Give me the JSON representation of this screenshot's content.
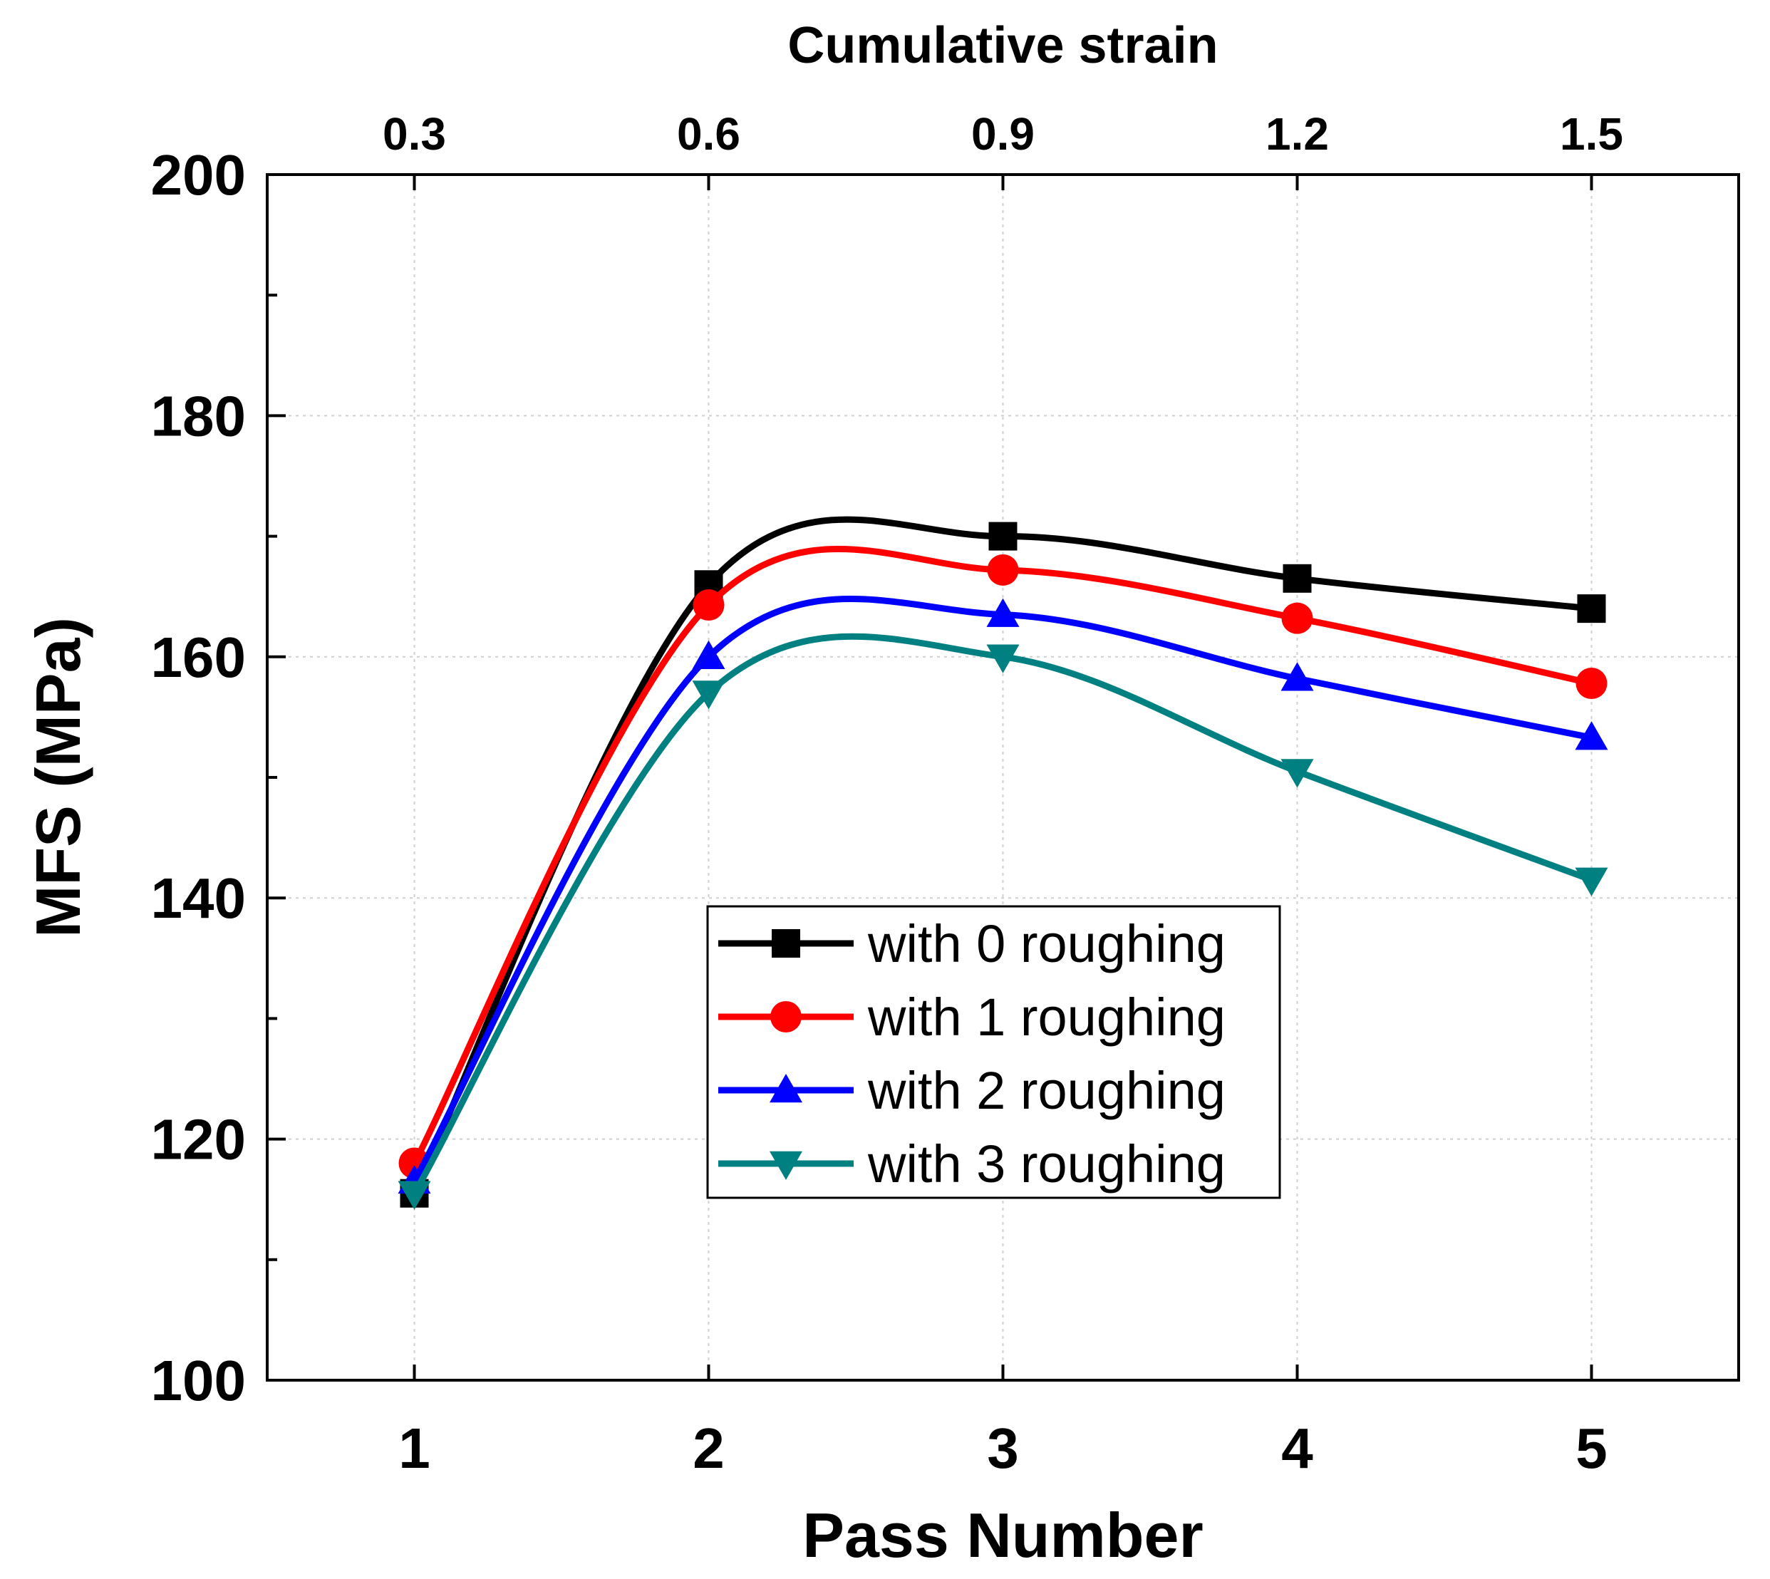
{
  "chart_data": {
    "type": "line",
    "title": "",
    "xlabel": "Pass Number",
    "ylabel": "MFS (MPa)",
    "top_xlabel": "Cumulative strain",
    "x": [
      1,
      2,
      3,
      4,
      5
    ],
    "x_tick_labels": [
      "1",
      "2",
      "3",
      "4",
      "5"
    ],
    "top_tick_labels": [
      "0.3",
      "0.6",
      "0.9",
      "1.2",
      "1.5"
    ],
    "xlim": [
      0.5,
      5.5
    ],
    "ylim": [
      100,
      200
    ],
    "y_major_ticks": [
      100,
      120,
      140,
      160,
      180,
      200
    ],
    "y_tick_labels": [
      "100",
      "120",
      "140",
      "160",
      "180",
      "200"
    ],
    "grid": true,
    "legend_position": "center",
    "series": [
      {
        "name": "with 0 roughing",
        "marker": "square",
        "color": "#000000",
        "values": [
          115.5,
          166.0,
          170.0,
          166.5,
          164.0
        ]
      },
      {
        "name": "with 1 roughing",
        "marker": "circle",
        "color": "#ff0000",
        "values": [
          118.0,
          164.3,
          167.2,
          163.2,
          157.8
        ]
      },
      {
        "name": "with 2 roughing",
        "marker": "triangle-up",
        "color": "#0000ff",
        "values": [
          116.5,
          160.0,
          163.5,
          158.2,
          153.3
        ]
      },
      {
        "name": "with 3 roughing",
        "marker": "triangle-down",
        "color": "#008080",
        "values": [
          115.5,
          157.0,
          160.0,
          150.5,
          141.5
        ]
      }
    ]
  }
}
